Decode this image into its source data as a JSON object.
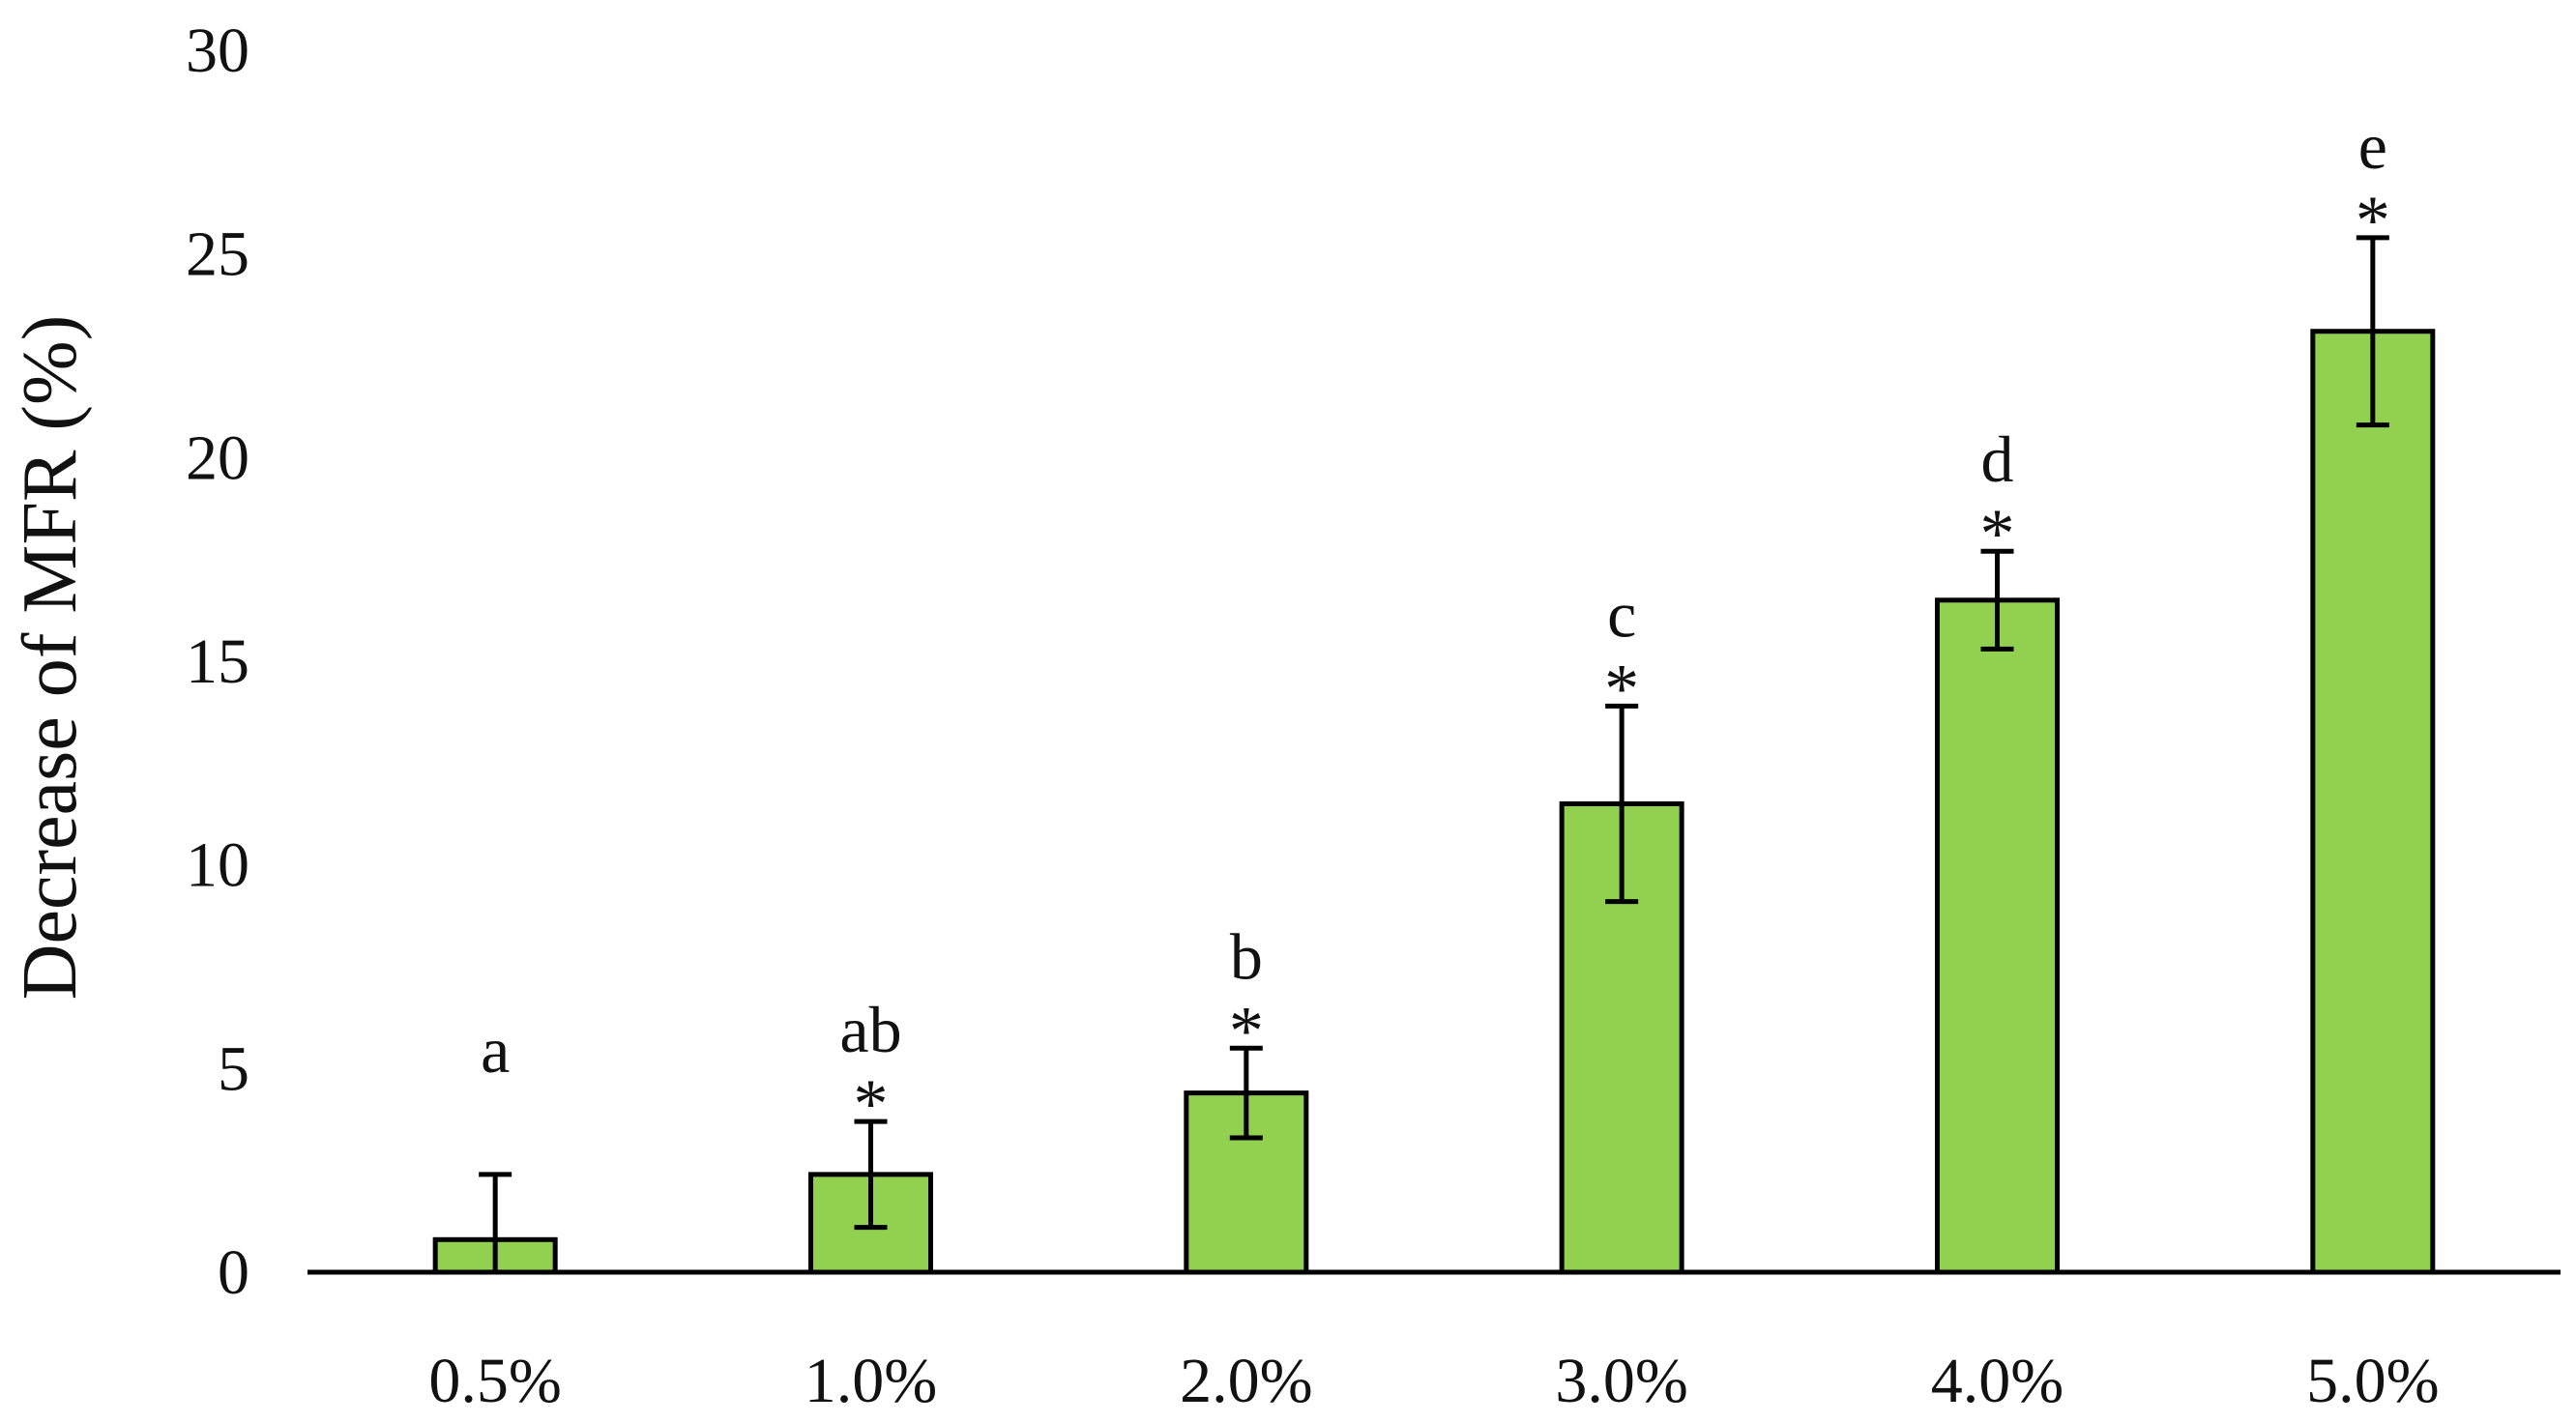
{
  "chart_data": {
    "type": "bar",
    "title": "",
    "xlabel": "",
    "ylabel": "Decrease of MFR (%)",
    "ylim": [
      0,
      30
    ],
    "yticks": [
      "0",
      "5",
      "10",
      "15",
      "20",
      "25",
      "30"
    ],
    "grid": false,
    "legend": "none",
    "categories": [
      "0.5%",
      "1.0%",
      "2.0%",
      "3.0%",
      "4.0%",
      "5.0%"
    ],
    "values": [
      0.8,
      2.4,
      4.4,
      11.5,
      16.5,
      23.1
    ],
    "errors": [
      1.6,
      1.3,
      1.1,
      2.4,
      1.2,
      2.3
    ],
    "significance_letters": [
      "a",
      "ab",
      "b",
      "c",
      "d",
      "e"
    ],
    "significance_stars": [
      "",
      "*",
      "*",
      "*",
      "*",
      "*"
    ],
    "colors": {
      "bar_fill": "#92d050",
      "bar_stroke": "#000000",
      "axis": "#000000"
    }
  }
}
